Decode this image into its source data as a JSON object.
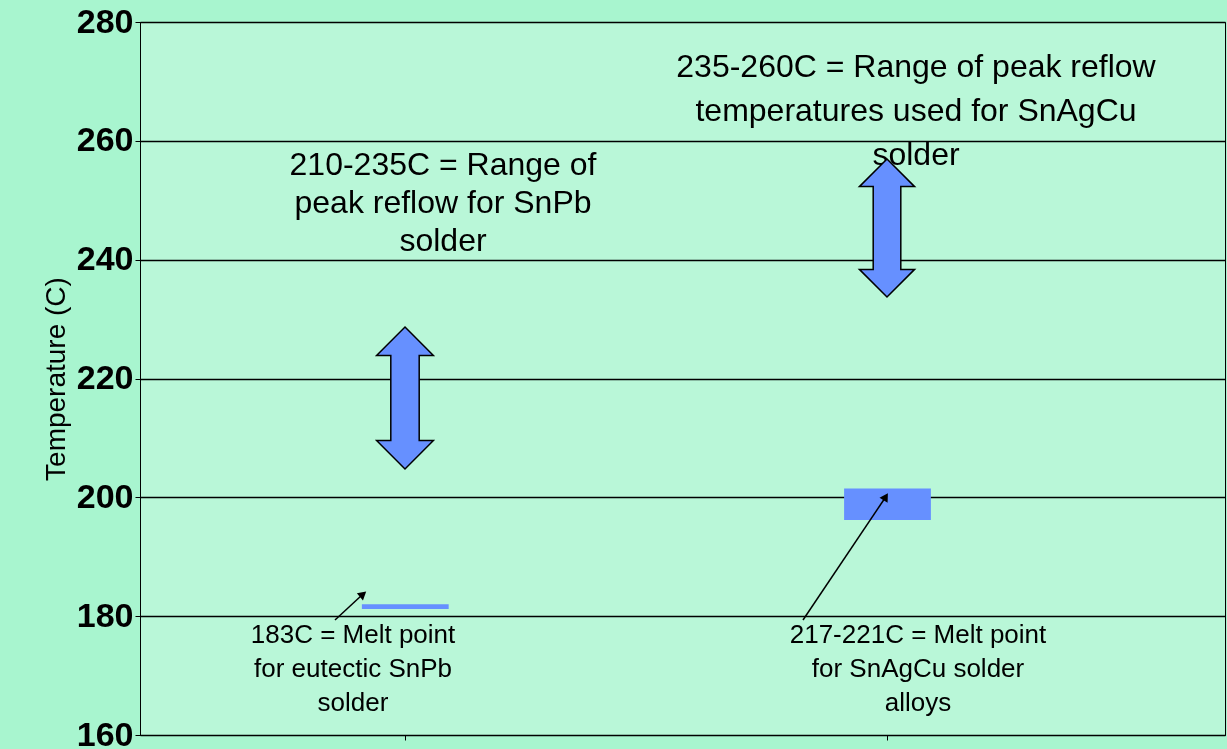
{
  "chart_data": {
    "type": "bar",
    "ylabel": "Temperature (C)",
    "categories": [
      null,
      null
    ],
    "base": [
      181.2,
      196.2
    ],
    "values": [
      0.8,
      5.3
    ],
    "color": "#6690ff",
    "ylim": [
      160,
      280
    ],
    "yticks": [
      160,
      180,
      200,
      220,
      240,
      260,
      280
    ],
    "grid": "y",
    "annotations": [
      "235-260C = Range of peak reflow\ntemperatures used  for SnAgCu\nsolder",
      "210-235C = Range of\npeak reflow for SnPb\nsolder",
      "183C = Melt point\nfor eutectic SnPb\nsolder",
      "217-221C = Melt point\nfor SnAgCu solder\nalloys"
    ]
  }
}
